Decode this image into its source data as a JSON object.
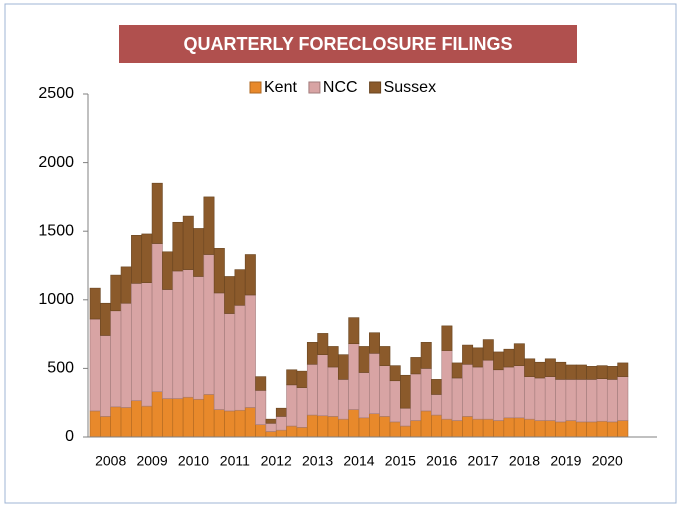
{
  "chart_data": {
    "type": "stacked_bar",
    "title": "QUARTERLY FORECLOSURE FILINGS",
    "categories": [
      "2008",
      null,
      null,
      null,
      "2009",
      null,
      null,
      null,
      "2010",
      null,
      null,
      null,
      "2011",
      null,
      null,
      null,
      "2012",
      null,
      null,
      null,
      "2013",
      null,
      null,
      null,
      "2014",
      null,
      null,
      null,
      "2015",
      null,
      null,
      null,
      "2016",
      null,
      null,
      null,
      "2017",
      null,
      null,
      null,
      "2018",
      null,
      null,
      null,
      "2019",
      null,
      null,
      null,
      "2020",
      null,
      null,
      null
    ],
    "series": [
      {
        "name": "Kent",
        "color": "#e8892b",
        "values": [
          190,
          150,
          220,
          215,
          265,
          225,
          330,
          280,
          280,
          290,
          275,
          310,
          200,
          190,
          195,
          215,
          90,
          40,
          50,
          80,
          70,
          160,
          155,
          150,
          130,
          200,
          140,
          170,
          150,
          110,
          80,
          120,
          190,
          160,
          130,
          120,
          150,
          130,
          130,
          120,
          140,
          140,
          130,
          120,
          120,
          110,
          120,
          110,
          110,
          115,
          110,
          120
        ]
      },
      {
        "name": "NCC",
        "color": "#d8a4a4",
        "values": [
          670,
          590,
          700,
          760,
          855,
          900,
          1080,
          795,
          930,
          930,
          895,
          1020,
          850,
          710,
          765,
          820,
          250,
          60,
          100,
          300,
          290,
          370,
          445,
          360,
          290,
          480,
          330,
          440,
          370,
          300,
          130,
          340,
          310,
          150,
          500,
          310,
          380,
          380,
          430,
          370,
          370,
          380,
          310,
          310,
          320,
          310,
          300,
          310,
          310,
          310,
          310,
          320
        ]
      },
      {
        "name": "Sussex",
        "color": "#8b5a2b",
        "values": [
          225,
          235,
          260,
          265,
          350,
          355,
          440,
          275,
          355,
          390,
          350,
          420,
          325,
          270,
          260,
          295,
          100,
          30,
          60,
          110,
          120,
          160,
          155,
          150,
          180,
          190,
          190,
          150,
          140,
          110,
          240,
          120,
          190,
          110,
          180,
          110,
          140,
          140,
          150,
          130,
          130,
          160,
          130,
          115,
          130,
          125,
          105,
          105,
          95,
          95,
          95,
          100
        ]
      }
    ],
    "ylim": [
      0,
      2500
    ],
    "yticks": [
      0,
      500,
      1000,
      1500,
      2000,
      2500
    ],
    "legend": "top"
  }
}
